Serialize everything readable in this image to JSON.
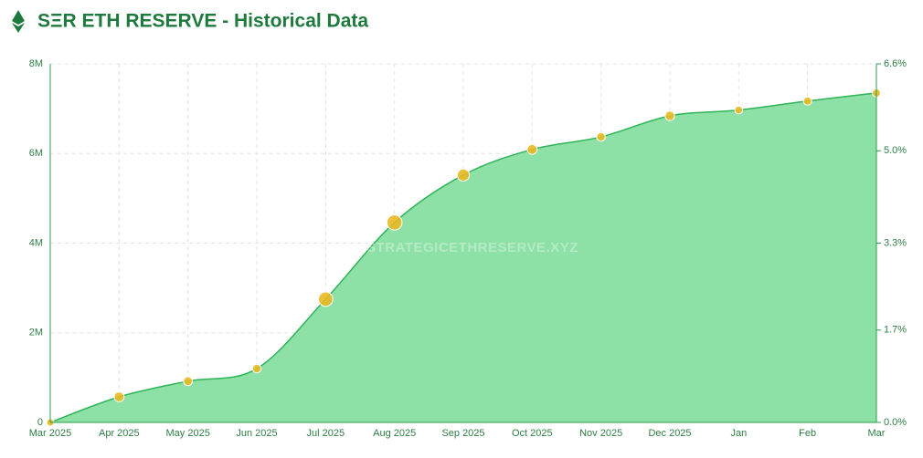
{
  "chart_data": {
    "type": "area",
    "title": "SΞR ETH RESERVE - Historical Data",
    "watermark": "STRATEGICETHRESERVE.XYZ",
    "categories": [
      "Mar 2025",
      "Apr 2025",
      "May 2025",
      "Jun 2025",
      "Jul 2025",
      "Aug 2025",
      "Sep 2025",
      "Oct 2025",
      "Nov 2025",
      "Dec 2025",
      "Jan",
      "Feb",
      "Mar"
    ],
    "series": [
      {
        "color": "#2fb457",
        "fill": "#8de0a6",
        "marker_color": "#e8b923",
        "values": [
          0,
          570000,
          920000,
          1200000,
          2750000,
          4460000,
          5520000,
          6090000,
          6370000,
          6840000,
          6970000,
          7170000,
          7350000
        ]
      }
    ],
    "ylim": [
      0,
      8000000
    ],
    "yticks": [
      0,
      {
        "value": 2000000,
        "label": "2M"
      },
      {
        "value": 4000000,
        "label": "4M"
      },
      {
        "value": 6000000,
        "label": "6M"
      },
      {
        "value": 8000000,
        "label": "8M"
      }
    ],
    "y2lim": [
      0,
      6.6
    ],
    "y2ticks": [
      {
        "value": 0,
        "label": "0.0%"
      },
      {
        "value": 1.7,
        "label": "1.7%"
      },
      {
        "value": 3.3,
        "label": "3.3%"
      },
      {
        "value": 5,
        "label": "5.0%"
      },
      {
        "value": 6.6,
        "label": "6.6%"
      }
    ],
    "grid": true
  }
}
